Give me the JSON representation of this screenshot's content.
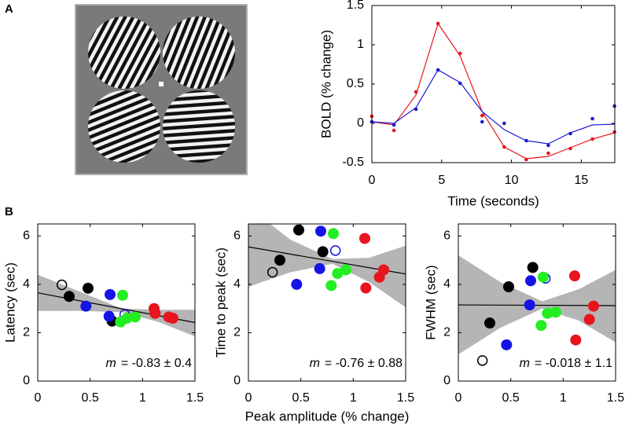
{
  "panels": {
    "a": "A",
    "b": "B"
  },
  "chart_data": [
    {
      "type": "line",
      "x": [
        0,
        1.58,
        3.16,
        4.74,
        6.32,
        7.9,
        9.48,
        11.06,
        12.64,
        14.22,
        15.8,
        17.38
      ],
      "xlim": [
        0,
        17.4
      ],
      "xticks": [
        0,
        5,
        10,
        15
      ],
      "ylim": [
        -0.5,
        1.5
      ],
      "yticks": [
        -0.5,
        0,
        0.5,
        1,
        1.5
      ],
      "xlabel": "Time (seconds)",
      "ylabel": "BOLD (% change)",
      "series": [
        {
          "color": "#e8141e",
          "values": [
            0.09,
            -0.09,
            0.4,
            1.27,
            0.89,
            0.1,
            -0.3,
            -0.46,
            -0.38,
            -0.32,
            -0.2,
            -0.11
          ],
          "fit": [
            0.02,
            -0.02,
            0.36,
            1.27,
            0.86,
            0.15,
            -0.3,
            -0.45,
            -0.42,
            -0.31,
            -0.2,
            -0.12
          ]
        },
        {
          "color": "#1a1ad8",
          "values": [
            0.02,
            -0.02,
            0.18,
            0.68,
            0.51,
            0.02,
            0,
            -0.22,
            -0.28,
            -0.13,
            0.06,
            0.22
          ],
          "fit": [
            0.02,
            0,
            0.2,
            0.68,
            0.52,
            0.15,
            -0.08,
            -0.22,
            -0.26,
            -0.12,
            -0.02,
            -0.01
          ]
        }
      ]
    },
    {
      "type": "scatter",
      "ylabel": "Latency (sec)",
      "xlim": [
        0,
        1.5
      ],
      "xticks": [
        0,
        0.5,
        1,
        1.5
      ],
      "ylim": [
        0,
        6.5
      ],
      "yticks": [
        0,
        2,
        4,
        6
      ],
      "fit": [
        3.65,
        2.42
      ],
      "band": {
        "x": [
          0,
          0.4,
          0.8,
          1.15,
          1.5
        ],
        "lower": [
          2.9,
          2.9,
          2.85,
          2.45,
          1.85
        ],
        "upper": [
          4.4,
          3.7,
          3.0,
          2.95,
          2.95
        ]
      },
      "annotation_symbol": "m",
      "annotation": "= -0.83 ± 0.4",
      "series": [
        {
          "color": "#000000",
          "x": [
            0.23,
            0.3,
            0.48,
            0.71
          ],
          "values": [
            3.98,
            3.5,
            3.84,
            2.48
          ],
          "filled": [
            false,
            true,
            true,
            true
          ]
        },
        {
          "color": "#1414e6",
          "x": [
            0.46,
            0.69,
            0.68,
            0.83
          ],
          "values": [
            3.1,
            3.58,
            2.68,
            2.75
          ],
          "filled": [
            true,
            true,
            true,
            false
          ]
        },
        {
          "color": "#22ee22",
          "x": [
            0.81,
            0.79,
            0.85,
            0.93
          ],
          "values": [
            3.55,
            2.45,
            2.6,
            2.65
          ],
          "filled": [
            true,
            true,
            true,
            true
          ]
        },
        {
          "color": "#e8141e",
          "x": [
            1.11,
            1.12,
            1.25,
            1.29
          ],
          "values": [
            3.0,
            2.8,
            2.65,
            2.6
          ],
          "filled": [
            true,
            true,
            true,
            true
          ]
        }
      ]
    },
    {
      "type": "scatter",
      "ylabel": "Time to peak (sec)",
      "xlabel": "Peak amplitude (% change)",
      "xlim": [
        0,
        1.5
      ],
      "xticks": [
        0,
        0.5,
        1,
        1.5
      ],
      "ylim": [
        0,
        6.5
      ],
      "yticks": [
        0,
        2,
        4,
        6
      ],
      "fit": [
        5.55,
        4.43
      ],
      "band": {
        "x": [
          0,
          0.4,
          0.8,
          1.15,
          1.5
        ],
        "lower": [
          3.9,
          4.5,
          4.85,
          4.1,
          3.05
        ],
        "upper": [
          7.2,
          5.85,
          5.05,
          5.1,
          5.6
        ]
      },
      "annotation_symbol": "m",
      "annotation": "= -0.76 ± 0.88",
      "series": [
        {
          "color": "#000000",
          "x": [
            0.23,
            0.3,
            0.48,
            0.71
          ],
          "values": [
            4.5,
            5.0,
            6.25,
            5.35
          ],
          "filled": [
            false,
            true,
            true,
            true
          ]
        },
        {
          "color": "#1414e6",
          "x": [
            0.46,
            0.69,
            0.68,
            0.83
          ],
          "values": [
            4.0,
            6.2,
            4.65,
            5.4
          ],
          "filled": [
            true,
            true,
            true,
            false
          ]
        },
        {
          "color": "#22ee22",
          "x": [
            0.81,
            0.79,
            0.85,
            0.93
          ],
          "values": [
            6.1,
            3.95,
            4.45,
            4.6
          ],
          "filled": [
            true,
            true,
            true,
            true
          ]
        },
        {
          "color": "#e8141e",
          "x": [
            1.11,
            1.12,
            1.25,
            1.29
          ],
          "values": [
            5.9,
            3.85,
            4.3,
            4.6
          ],
          "filled": [
            true,
            true,
            true,
            true
          ]
        }
      ]
    },
    {
      "type": "scatter",
      "ylabel": "FWHM (sec)",
      "xlim": [
        0,
        1.5
      ],
      "xticks": [
        0,
        0.5,
        1,
        1.5
      ],
      "ylim": [
        0,
        6.5
      ],
      "yticks": [
        0,
        2,
        4,
        6
      ],
      "fit": [
        3.15,
        3.12
      ],
      "band": {
        "x": [
          0,
          0.4,
          0.8,
          1.15,
          1.5
        ],
        "lower": [
          1.1,
          2.2,
          3.0,
          2.5,
          1.6
        ],
        "upper": [
          5.2,
          4.1,
          3.3,
          3.8,
          4.6
        ]
      },
      "annotation_symbol": "m",
      "annotation": "= -0.018 ± 1.1",
      "series": [
        {
          "color": "#000000",
          "x": [
            0.23,
            0.3,
            0.48,
            0.71
          ],
          "values": [
            0.85,
            2.4,
            3.9,
            4.7
          ],
          "filled": [
            false,
            true,
            true,
            true
          ]
        },
        {
          "color": "#1414e6",
          "x": [
            0.46,
            0.69,
            0.68,
            0.83
          ],
          "values": [
            1.5,
            4.15,
            3.15,
            4.25
          ],
          "filled": [
            true,
            true,
            true,
            false
          ]
        },
        {
          "color": "#22ee22",
          "x": [
            0.81,
            0.79,
            0.85,
            0.93
          ],
          "values": [
            4.3,
            2.3,
            2.8,
            2.85
          ],
          "filled": [
            true,
            true,
            true,
            true
          ]
        },
        {
          "color": "#e8141e",
          "x": [
            1.11,
            1.12,
            1.25,
            1.29
          ],
          "values": [
            4.35,
            1.7,
            2.55,
            3.1
          ],
          "filled": [
            true,
            true,
            true,
            true
          ]
        }
      ]
    }
  ]
}
